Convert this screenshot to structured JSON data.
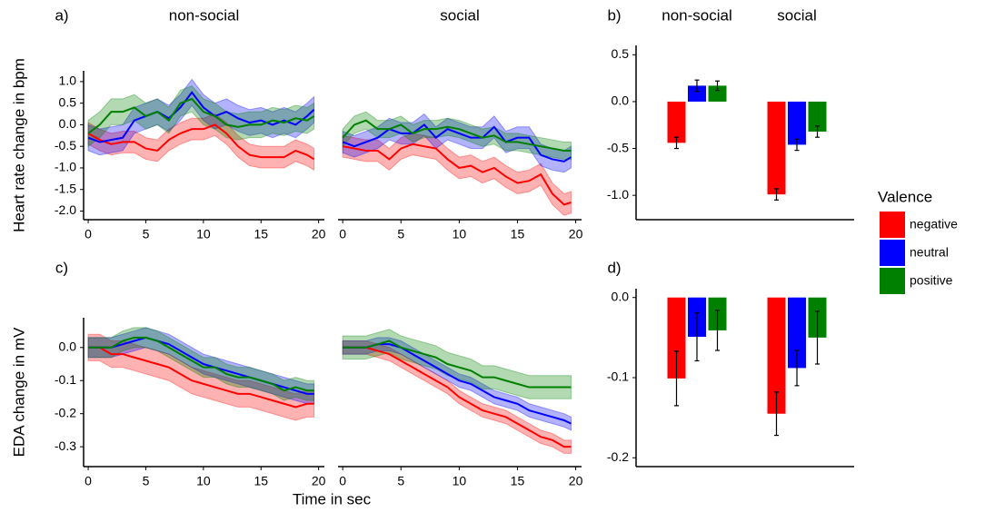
{
  "chart_data": [
    {
      "type": "line",
      "panel": "a)",
      "title": "non-social",
      "ylabel": "Heart rate change in bpm",
      "x": [
        0,
        1,
        2,
        3,
        4,
        5,
        6,
        7,
        8,
        9,
        10,
        11,
        12,
        13,
        14,
        15,
        16,
        17,
        18,
        19,
        19.6
      ],
      "xlim": [
        -0.4,
        20.5
      ],
      "xticks": [
        0,
        5,
        10,
        15,
        20
      ],
      "ylim": [
        -2.2,
        1.25
      ],
      "yticks": [
        {
          "value": 1,
          "label": "1.0"
        },
        0.5,
        {
          "value": 0,
          "label": "0.0"
        },
        -0.5,
        {
          "value": -1,
          "label": "-1.0"
        },
        -1.5,
        {
          "value": -2,
          "label": "-2.0"
        }
      ],
      "series": [
        {
          "color": "#ff0000",
          "error": 0.25,
          "values": [
            -0.2,
            -0.35,
            -0.45,
            -0.4,
            -0.4,
            -0.55,
            -0.6,
            -0.35,
            -0.2,
            -0.1,
            -0.1,
            0,
            -0.2,
            -0.5,
            -0.7,
            -0.75,
            -0.75,
            -0.75,
            -0.6,
            -0.7,
            -0.8
          ]
        },
        {
          "color": "#0000ff",
          "error": 0.3,
          "values": [
            -0.3,
            -0.4,
            -0.35,
            -0.3,
            0.1,
            0.2,
            0.3,
            0.15,
            0.4,
            0.75,
            0.4,
            0.2,
            0.3,
            0.15,
            0.05,
            0.1,
            0,
            0.1,
            0,
            0.2,
            0.35
          ]
        },
        {
          "color": "#008000",
          "error": 0.3,
          "values": [
            -0.2,
            0,
            0.3,
            0.3,
            0.4,
            0.2,
            0.3,
            0.1,
            0.5,
            0.6,
            0.3,
            0.2,
            0,
            -0.05,
            0,
            0,
            0.1,
            0.05,
            0.15,
            0.1,
            0.2
          ]
        }
      ]
    },
    {
      "type": "line",
      "title": "social",
      "x": [
        0,
        1,
        2,
        3,
        4,
        5,
        6,
        7,
        8,
        9,
        10,
        11,
        12,
        13,
        14,
        15,
        16,
        17,
        18,
        19,
        19.6
      ],
      "xlim": [
        -0.4,
        20.5
      ],
      "xticks": [
        0,
        5,
        10,
        15,
        20
      ],
      "ylim": [
        -2.2,
        1.25
      ],
      "series": [
        {
          "color": "#ff0000",
          "error": 0.25,
          "values": [
            -0.5,
            -0.55,
            -0.6,
            -0.6,
            -0.8,
            -0.55,
            -0.45,
            -0.5,
            -0.55,
            -0.8,
            -1.0,
            -0.95,
            -1.1,
            -1.0,
            -1.2,
            -1.35,
            -1.3,
            -1.15,
            -1.6,
            -1.85,
            -1.8
          ]
        },
        {
          "color": "#0000ff",
          "error": 0.25,
          "values": [
            -0.4,
            -0.5,
            -0.4,
            -0.3,
            -0.1,
            -0.2,
            -0.2,
            0,
            -0.3,
            -0.1,
            -0.2,
            -0.3,
            -0.3,
            -0.05,
            -0.4,
            -0.3,
            -0.3,
            -0.7,
            -0.8,
            -0.85,
            -0.75
          ]
        },
        {
          "color": "#008000",
          "error": 0.2,
          "values": [
            -0.3,
            0,
            0.1,
            -0.1,
            -0.1,
            0,
            -0.2,
            -0.1,
            -0.1,
            -0.05,
            -0.1,
            -0.2,
            -0.3,
            -0.25,
            -0.4,
            -0.4,
            -0.45,
            -0.5,
            -0.55,
            -0.6,
            -0.6
          ]
        }
      ]
    },
    {
      "type": "bar",
      "panel": "b)",
      "categories": [
        "non-social",
        "social"
      ],
      "legend_title": "Valence",
      "ylim": [
        -1.26,
        0.6
      ],
      "yticks": [
        0.5,
        {
          "value": 0,
          "label": "0.0"
        },
        -0.5,
        {
          "value": -1,
          "label": "-1.0"
        }
      ],
      "series": [
        {
          "name": "negative",
          "color": "#ff0000",
          "values": [
            -0.44,
            -0.99
          ],
          "errors": [
            0.06,
            0.06
          ]
        },
        {
          "name": "neutral",
          "color": "#0000ff",
          "values": [
            0.17,
            -0.46
          ],
          "errors": [
            0.06,
            0.06
          ]
        },
        {
          "name": "positive",
          "color": "#008000",
          "values": [
            0.17,
            -0.32
          ],
          "errors": [
            0.05,
            0.06
          ]
        }
      ]
    },
    {
      "type": "line",
      "panel": "c)",
      "ylabel": "EDA change in mV",
      "xlabel": "Time in sec",
      "x": [
        0,
        1,
        2,
        3,
        4,
        5,
        6,
        7,
        8,
        9,
        10,
        11,
        12,
        13,
        14,
        15,
        16,
        17,
        18,
        19,
        19.6
      ],
      "xlim": [
        -0.4,
        20.5
      ],
      "xticks": [
        0,
        5,
        10,
        15,
        20
      ],
      "ylim": [
        -0.36,
        0.09
      ],
      "yticks": [
        {
          "value": 0,
          "label": "0.0"
        },
        -0.1,
        -0.2,
        -0.3
      ],
      "series": [
        {
          "color": "#ff0000",
          "error": 0.04,
          "values": [
            0,
            0,
            -0.02,
            -0.02,
            -0.03,
            -0.04,
            -0.05,
            -0.06,
            -0.08,
            -0.1,
            -0.11,
            -0.12,
            -0.13,
            -0.14,
            -0.14,
            -0.15,
            -0.16,
            -0.17,
            -0.18,
            -0.17,
            -0.17
          ]
        },
        {
          "color": "#0000ff",
          "error": 0.03,
          "values": [
            0,
            0,
            0,
            0.01,
            0.02,
            0.03,
            0.02,
            0.01,
            -0.01,
            -0.03,
            -0.05,
            -0.06,
            -0.07,
            -0.08,
            -0.09,
            -0.1,
            -0.11,
            -0.12,
            -0.13,
            -0.14,
            -0.14
          ]
        },
        {
          "color": "#008000",
          "error": 0.03,
          "values": [
            0,
            0,
            0,
            0.02,
            0.03,
            0.03,
            0.02,
            0,
            -0.02,
            -0.04,
            -0.06,
            -0.06,
            -0.08,
            -0.09,
            -0.09,
            -0.1,
            -0.11,
            -0.13,
            -0.12,
            -0.13,
            -0.13
          ]
        }
      ]
    },
    {
      "type": "line",
      "x": [
        0,
        1,
        2,
        3,
        4,
        5,
        6,
        7,
        8,
        9,
        10,
        11,
        12,
        13,
        14,
        15,
        16,
        17,
        18,
        19,
        19.6
      ],
      "xlim": [
        -0.4,
        20.5
      ],
      "xticks": [
        0,
        5,
        10,
        15,
        20
      ],
      "ylim": [
        -0.36,
        0.09
      ],
      "series": [
        {
          "color": "#ff0000",
          "error": 0.02,
          "values": [
            0,
            0,
            0,
            -0.01,
            -0.02,
            -0.04,
            -0.06,
            -0.08,
            -0.1,
            -0.12,
            -0.15,
            -0.17,
            -0.19,
            -0.2,
            -0.21,
            -0.23,
            -0.25,
            -0.27,
            -0.28,
            -0.3,
            -0.3
          ]
        },
        {
          "color": "#0000ff",
          "error": 0.02,
          "values": [
            0,
            0,
            0,
            0.01,
            0.01,
            0,
            -0.02,
            -0.04,
            -0.06,
            -0.08,
            -0.1,
            -0.11,
            -0.13,
            -0.15,
            -0.16,
            -0.17,
            -0.19,
            -0.2,
            -0.21,
            -0.22,
            -0.23
          ]
        },
        {
          "color": "#008000",
          "error": 0.035,
          "values": [
            0,
            0,
            0,
            0.01,
            0.02,
            0,
            -0.01,
            -0.02,
            -0.03,
            -0.05,
            -0.06,
            -0.07,
            -0.09,
            -0.09,
            -0.1,
            -0.11,
            -0.12,
            -0.12,
            -0.12,
            -0.12,
            -0.12
          ]
        }
      ]
    },
    {
      "type": "bar",
      "panel": "d)",
      "categories": [
        null,
        null
      ],
      "ylim": [
        -0.211,
        0.011
      ],
      "yticks": [
        {
          "value": 0,
          "label": "0.0"
        },
        -0.1,
        -0.2
      ],
      "series": [
        {
          "color": "#ff0000",
          "values": [
            -0.101,
            -0.145
          ],
          "errors": [
            0.034,
            0.027
          ]
        },
        {
          "color": "#0000ff",
          "values": [
            -0.049,
            -0.088
          ],
          "errors": [
            0.03,
            0.022
          ]
        },
        {
          "color": "#008000",
          "values": [
            -0.041,
            -0.05
          ],
          "errors": [
            0.025,
            0.033
          ]
        }
      ]
    }
  ]
}
